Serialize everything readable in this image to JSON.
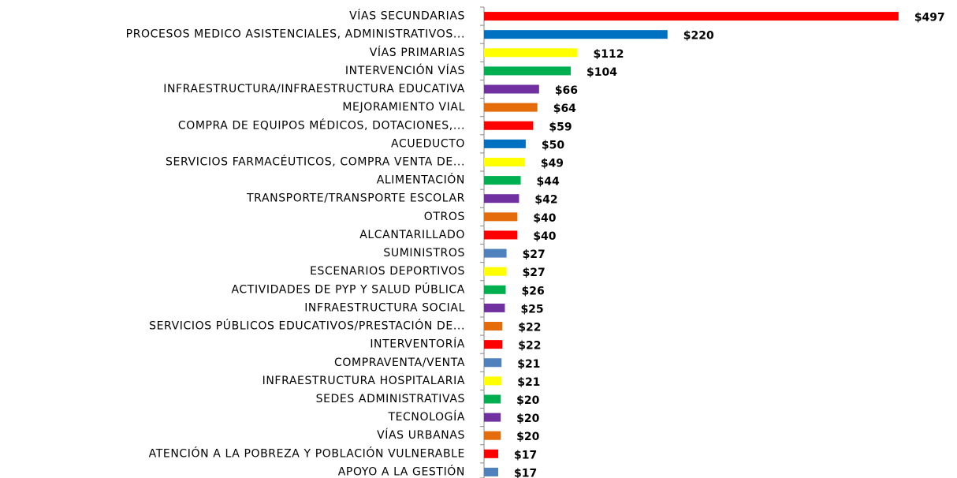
{
  "chart_data": {
    "type": "barh",
    "categories": [
      "VÍAS SECUNDARIAS",
      "PROCESOS MEDICO ASISTENCIALES, ADMINISTRATIVOS...",
      "VÍAS PRIMARIAS",
      "INTERVENCIÓN VÍAS",
      "INFRAESTRUCTURA/INFRAESTRUCTURA EDUCATIVA",
      "MEJORAMIENTO VIAL",
      "COMPRA DE EQUIPOS MÉDICOS, DOTACIONES,...",
      "ACUEDUCTO",
      "SERVICIOS FARMACÉUTICOS, COMPRA VENTA DE...",
      "ALIMENTACIÓN",
      "TRANSPORTE/TRANSPORTE ESCOLAR",
      "OTROS",
      "ALCANTARILLADO",
      "SUMINISTROS",
      "ESCENARIOS DEPORTIVOS",
      "ACTIVIDADES DE PYP Y SALUD PÚBLICA",
      "INFRAESTRUCTURA SOCIAL",
      "SERVICIOS PÚBLICOS EDUCATIVOS/PRESTACIÓN DE...",
      "INTERVENTORÍA",
      "COMPRAVENTA/VENTA",
      "INFRAESTRUCTURA HOSPITALARIA",
      "SEDES ADMINISTRATIVAS",
      "TECNOLOGÍA",
      "VÍAS URBANAS",
      "ATENCIÓN A LA POBREZA Y POBLACIÓN VULNERABLE",
      "APOYO A LA GESTIÓN"
    ],
    "values": [
      497,
      220,
      112,
      104,
      66,
      64,
      59,
      50,
      49,
      44,
      42,
      40,
      40,
      27,
      27,
      26,
      25,
      22,
      22,
      21,
      21,
      20,
      20,
      20,
      17,
      17
    ],
    "value_labels": [
      "$497",
      "$220",
      "$112",
      "$104",
      "$66",
      "$64",
      "$59",
      "$50",
      "$49",
      "$44",
      "$42",
      "$40",
      "$40",
      "$27",
      "$27",
      "$26",
      "$25",
      "$22",
      "$22",
      "$21",
      "$21",
      "$20",
      "$20",
      "$20",
      "$17",
      "$17"
    ],
    "colors": [
      "#ff0000",
      "#0070c0",
      "#ffff00",
      "#00b050",
      "#7030a0",
      "#e46c0a",
      "#ff0000",
      "#0070c0",
      "#ffff00",
      "#00b050",
      "#7030a0",
      "#e46c0a",
      "#ff0000",
      "#4f81bd",
      "#ffff00",
      "#00b050",
      "#7030a0",
      "#e46c0a",
      "#ff0000",
      "#4f81bd",
      "#ffff00",
      "#00b050",
      "#7030a0",
      "#e46c0a",
      "#ff0000",
      "#4f81bd"
    ],
    "xlim": [
      0,
      500
    ]
  }
}
